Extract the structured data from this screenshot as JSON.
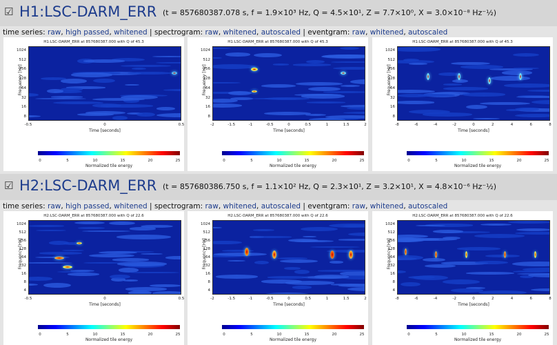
{
  "sections": [
    {
      "checkbox": "☑",
      "channel": "H1:LSC-DARM_ERR",
      "params": "(t = 857680387.078 s, f = 1.9×10³ Hz, Q = 4.5×10¹, Z = 7.7×10⁰, X = 3.0×10⁻⁸ Hz⁻½)",
      "links": [
        {
          "label": "time series:",
          "items": [
            "raw",
            "high passed",
            "whitened"
          ]
        },
        {
          "label": "spectrogram:",
          "items": [
            "raw",
            "whitened",
            "autoscaled"
          ]
        },
        {
          "label": "eventgram:",
          "items": [
            "raw",
            "whitened",
            "autoscaled"
          ]
        }
      ],
      "panels": [
        {
          "title": "H1:LSC-DARM_ERR at 857680387.000 with Q of 45.3",
          "y_label": "Frequency [Hz]",
          "y_ticks": [
            "1024",
            "512",
            "256",
            "128",
            "64",
            "32",
            "16",
            "8"
          ],
          "x_ticks": [
            "-0.5",
            "0",
            "0.5"
          ],
          "x_label": "Time [seconds]",
          "colorbar_ticks": [
            "0",
            "5",
            "10",
            "15",
            "20",
            "25"
          ],
          "colorbar_label": "Normalized tile energy"
        },
        {
          "title": "H1:LSC-DARM_ERR at 857680387.000 with Q of 45.3",
          "y_label": "Frequency [Hz]",
          "y_ticks": [
            "1024",
            "512",
            "256",
            "128",
            "64",
            "32",
            "16",
            "8"
          ],
          "x_ticks": [
            "-2",
            "-1.5",
            "-1",
            "-0.5",
            "0",
            "0.5",
            "1",
            "1.5",
            "2"
          ],
          "x_label": "Time [seconds]",
          "colorbar_ticks": [
            "0",
            "5",
            "10",
            "15",
            "20",
            "25"
          ],
          "colorbar_label": "Normalized tile energy"
        },
        {
          "title": "H1:LSC-DARM_ERR at 857680387.000 with Q of 45.3",
          "y_label": "Frequency [Hz]",
          "y_ticks": [
            "1024",
            "512",
            "256",
            "128",
            "64",
            "32",
            "16",
            "8"
          ],
          "x_ticks": [
            "-8",
            "-6",
            "-4",
            "-2",
            "0",
            "2",
            "4",
            "6",
            "8"
          ],
          "x_label": "Time [seconds]",
          "colorbar_ticks": [
            "0",
            "5",
            "10",
            "15",
            "20",
            "25"
          ],
          "colorbar_label": "Normalized tile energy"
        }
      ]
    },
    {
      "checkbox": "☑",
      "channel": "H2:LSC-DARM_ERR",
      "params": "(t = 857680386.750 s, f = 1.1×10² Hz, Q = 2.3×10¹, Z = 3.2×10¹, X = 4.8×10⁻⁶ Hz⁻½)",
      "links": [
        {
          "label": "time series:",
          "items": [
            "raw",
            "high passed",
            "whitened"
          ]
        },
        {
          "label": "spectrogram:",
          "items": [
            "raw",
            "whitened",
            "autoscaled"
          ]
        },
        {
          "label": "eventgram:",
          "items": [
            "raw",
            "whitened",
            "autoscaled"
          ]
        }
      ],
      "panels": [
        {
          "title": "H2:LSC-DARM_ERR at 857680387.000 with Q of 22.6",
          "y_label": "Frequency [Hz]",
          "y_ticks": [
            "1024",
            "512",
            "256",
            "128",
            "64",
            "32",
            "16",
            "8",
            "4"
          ],
          "x_ticks": [
            "-0.5",
            "0",
            "0.5"
          ],
          "x_label": "Time [seconds]",
          "colorbar_ticks": [
            "0",
            "5",
            "10",
            "15",
            "20",
            "25"
          ],
          "colorbar_label": "Normalized tile energy"
        },
        {
          "title": "H2:LSC-DARM_ERR at 857680387.000 with Q of 22.6",
          "y_label": "Frequency [Hz]",
          "y_ticks": [
            "1024",
            "512",
            "256",
            "128",
            "64",
            "32",
            "16",
            "8",
            "4"
          ],
          "x_ticks": [
            "-2",
            "-1.5",
            "-1",
            "-0.5",
            "0",
            "0.5",
            "1",
            "1.5",
            "2"
          ],
          "x_label": "Time [seconds]",
          "colorbar_ticks": [
            "0",
            "5",
            "10",
            "15",
            "20",
            "25"
          ],
          "colorbar_label": "Normalized tile energy"
        },
        {
          "title": "H2:LSC-DARM_ERR at 857680387.000 with Q of 22.6",
          "y_label": "Frequency [Hz]",
          "y_ticks": [
            "1024",
            "512",
            "256",
            "128",
            "64",
            "32",
            "16",
            "8",
            "4"
          ],
          "x_ticks": [
            "-8",
            "-6",
            "-4",
            "-2",
            "0",
            "2",
            "4",
            "6",
            "8"
          ],
          "x_label": "Time [seconds]",
          "colorbar_ticks": [
            "0",
            "5",
            "10",
            "15",
            "20",
            "25"
          ],
          "colorbar_label": "Normalized tile energy"
        }
      ]
    }
  ],
  "link_separator": ",",
  "group_separator": "|"
}
